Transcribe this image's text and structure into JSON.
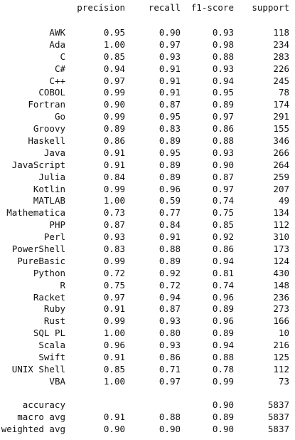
{
  "headers": {
    "precision": "precision",
    "recall": "recall",
    "f1": "f1-score",
    "support": "support"
  },
  "rows": [
    {
      "label": "AWK",
      "precision": "0.95",
      "recall": "0.90",
      "f1": "0.93",
      "support": "118"
    },
    {
      "label": "Ada",
      "precision": "1.00",
      "recall": "0.97",
      "f1": "0.98",
      "support": "234"
    },
    {
      "label": "C",
      "precision": "0.85",
      "recall": "0.93",
      "f1": "0.88",
      "support": "283"
    },
    {
      "label": "C#",
      "precision": "0.94",
      "recall": "0.91",
      "f1": "0.93",
      "support": "226"
    },
    {
      "label": "C++",
      "precision": "0.97",
      "recall": "0.91",
      "f1": "0.94",
      "support": "245"
    },
    {
      "label": "COBOL",
      "precision": "0.99",
      "recall": "0.91",
      "f1": "0.95",
      "support": "78"
    },
    {
      "label": "Fortran",
      "precision": "0.90",
      "recall": "0.87",
      "f1": "0.89",
      "support": "174"
    },
    {
      "label": "Go",
      "precision": "0.99",
      "recall": "0.95",
      "f1": "0.97",
      "support": "291"
    },
    {
      "label": "Groovy",
      "precision": "0.89",
      "recall": "0.83",
      "f1": "0.86",
      "support": "155"
    },
    {
      "label": "Haskell",
      "precision": "0.86",
      "recall": "0.89",
      "f1": "0.88",
      "support": "346"
    },
    {
      "label": "Java",
      "precision": "0.91",
      "recall": "0.95",
      "f1": "0.93",
      "support": "266"
    },
    {
      "label": "JavaScript",
      "precision": "0.91",
      "recall": "0.89",
      "f1": "0.90",
      "support": "264"
    },
    {
      "label": "Julia",
      "precision": "0.84",
      "recall": "0.89",
      "f1": "0.87",
      "support": "259"
    },
    {
      "label": "Kotlin",
      "precision": "0.99",
      "recall": "0.96",
      "f1": "0.97",
      "support": "207"
    },
    {
      "label": "MATLAB",
      "precision": "1.00",
      "recall": "0.59",
      "f1": "0.74",
      "support": "49"
    },
    {
      "label": "Mathematica",
      "precision": "0.73",
      "recall": "0.77",
      "f1": "0.75",
      "support": "134"
    },
    {
      "label": "PHP",
      "precision": "0.87",
      "recall": "0.84",
      "f1": "0.85",
      "support": "112"
    },
    {
      "label": "Perl",
      "precision": "0.93",
      "recall": "0.91",
      "f1": "0.92",
      "support": "310"
    },
    {
      "label": "PowerShell",
      "precision": "0.83",
      "recall": "0.88",
      "f1": "0.86",
      "support": "173"
    },
    {
      "label": "PureBasic",
      "precision": "0.99",
      "recall": "0.89",
      "f1": "0.94",
      "support": "124"
    },
    {
      "label": "Python",
      "precision": "0.72",
      "recall": "0.92",
      "f1": "0.81",
      "support": "430"
    },
    {
      "label": "R",
      "precision": "0.75",
      "recall": "0.72",
      "f1": "0.74",
      "support": "148"
    },
    {
      "label": "Racket",
      "precision": "0.97",
      "recall": "0.94",
      "f1": "0.96",
      "support": "236"
    },
    {
      "label": "Ruby",
      "precision": "0.91",
      "recall": "0.87",
      "f1": "0.89",
      "support": "273"
    },
    {
      "label": "Rust",
      "precision": "0.99",
      "recall": "0.93",
      "f1": "0.96",
      "support": "166"
    },
    {
      "label": "SQL PL",
      "precision": "1.00",
      "recall": "0.80",
      "f1": "0.89",
      "support": "10"
    },
    {
      "label": "Scala",
      "precision": "0.96",
      "recall": "0.93",
      "f1": "0.94",
      "support": "216"
    },
    {
      "label": "Swift",
      "precision": "0.91",
      "recall": "0.86",
      "f1": "0.88",
      "support": "125"
    },
    {
      "label": "UNIX Shell",
      "precision": "0.85",
      "recall": "0.71",
      "f1": "0.78",
      "support": "112"
    },
    {
      "label": "VBA",
      "precision": "1.00",
      "recall": "0.97",
      "f1": "0.99",
      "support": "73"
    }
  ],
  "summary": [
    {
      "label": "accuracy",
      "precision": "",
      "recall": "",
      "f1": "0.90",
      "support": "5837"
    },
    {
      "label": "macro avg",
      "precision": "0.91",
      "recall": "0.88",
      "f1": "0.89",
      "support": "5837"
    },
    {
      "label": "weighted avg",
      "precision": "0.90",
      "recall": "0.90",
      "f1": "0.90",
      "support": "5837"
    }
  ]
}
